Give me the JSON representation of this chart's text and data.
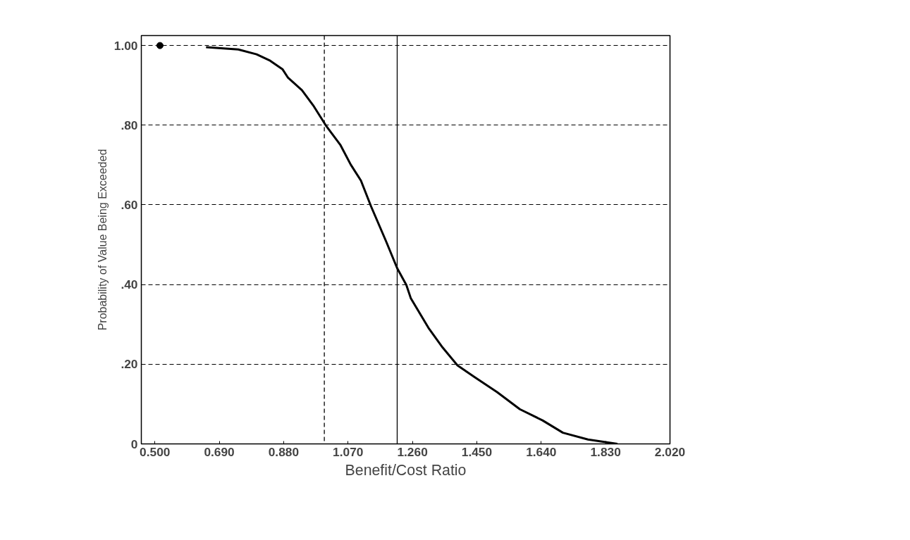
{
  "chart_data": {
    "type": "line",
    "xlabel": "Benefit/Cost Ratio",
    "ylabel": "Probability of Value Being Exceeded",
    "xlim": [
      0.46,
      2.02
    ],
    "ylim": [
      0,
      1.025
    ],
    "xticks": [
      {
        "value": 0.5,
        "label": "0.500"
      },
      {
        "value": 0.69,
        "label": "0.690"
      },
      {
        "value": 0.88,
        "label": "0.880"
      },
      {
        "value": 1.07,
        "label": "1.070"
      },
      {
        "value": 1.26,
        "label": "1.260"
      },
      {
        "value": 1.45,
        "label": "1.450"
      },
      {
        "value": 1.64,
        "label": "1.640"
      },
      {
        "value": 1.83,
        "label": "1.830"
      },
      {
        "value": 2.02,
        "label": "2.020"
      }
    ],
    "yticks": [
      0,
      {
        "value": 0.2,
        "label": ".20"
      },
      {
        "value": 0.4,
        "label": ".40"
      },
      {
        "value": 0.6,
        "label": ".60"
      },
      {
        "value": 0.8,
        "label": ".80"
      },
      {
        "value": 1.0,
        "label": "1.00"
      }
    ],
    "grid": "y",
    "marker": "none",
    "line_style": "solid",
    "ref_lines": [
      {
        "axis": "x",
        "value": 1.0,
        "line_style": "dashed",
        "color": "#000000"
      },
      {
        "axis": "x",
        "value": 1.215,
        "line_style": "solid",
        "color": "#000000"
      }
    ],
    "series": [
      {
        "color": "#000000",
        "x": [
          0.651,
          0.746,
          0.8,
          0.84,
          0.877,
          0.893,
          0.934,
          0.967,
          1.004,
          1.047,
          1.078,
          1.108,
          1.138,
          1.182,
          1.215,
          1.242,
          1.255,
          1.309,
          1.349,
          1.393,
          1.443,
          1.51,
          1.577,
          1.644,
          1.704,
          1.778,
          1.865
        ],
        "values": [
          0.996,
          0.99,
          0.978,
          0.962,
          0.94,
          0.919,
          0.888,
          0.85,
          0.8,
          0.751,
          0.701,
          0.661,
          0.596,
          0.509,
          0.441,
          0.399,
          0.366,
          0.289,
          0.242,
          0.197,
          0.168,
          0.13,
          0.087,
          0.059,
          0.028,
          0.011,
          0.0
        ]
      },
      {
        "type": "scatter",
        "marker": "circle",
        "color": "#000000",
        "x": [
          0.515
        ],
        "values": [
          1.0
        ]
      }
    ]
  }
}
